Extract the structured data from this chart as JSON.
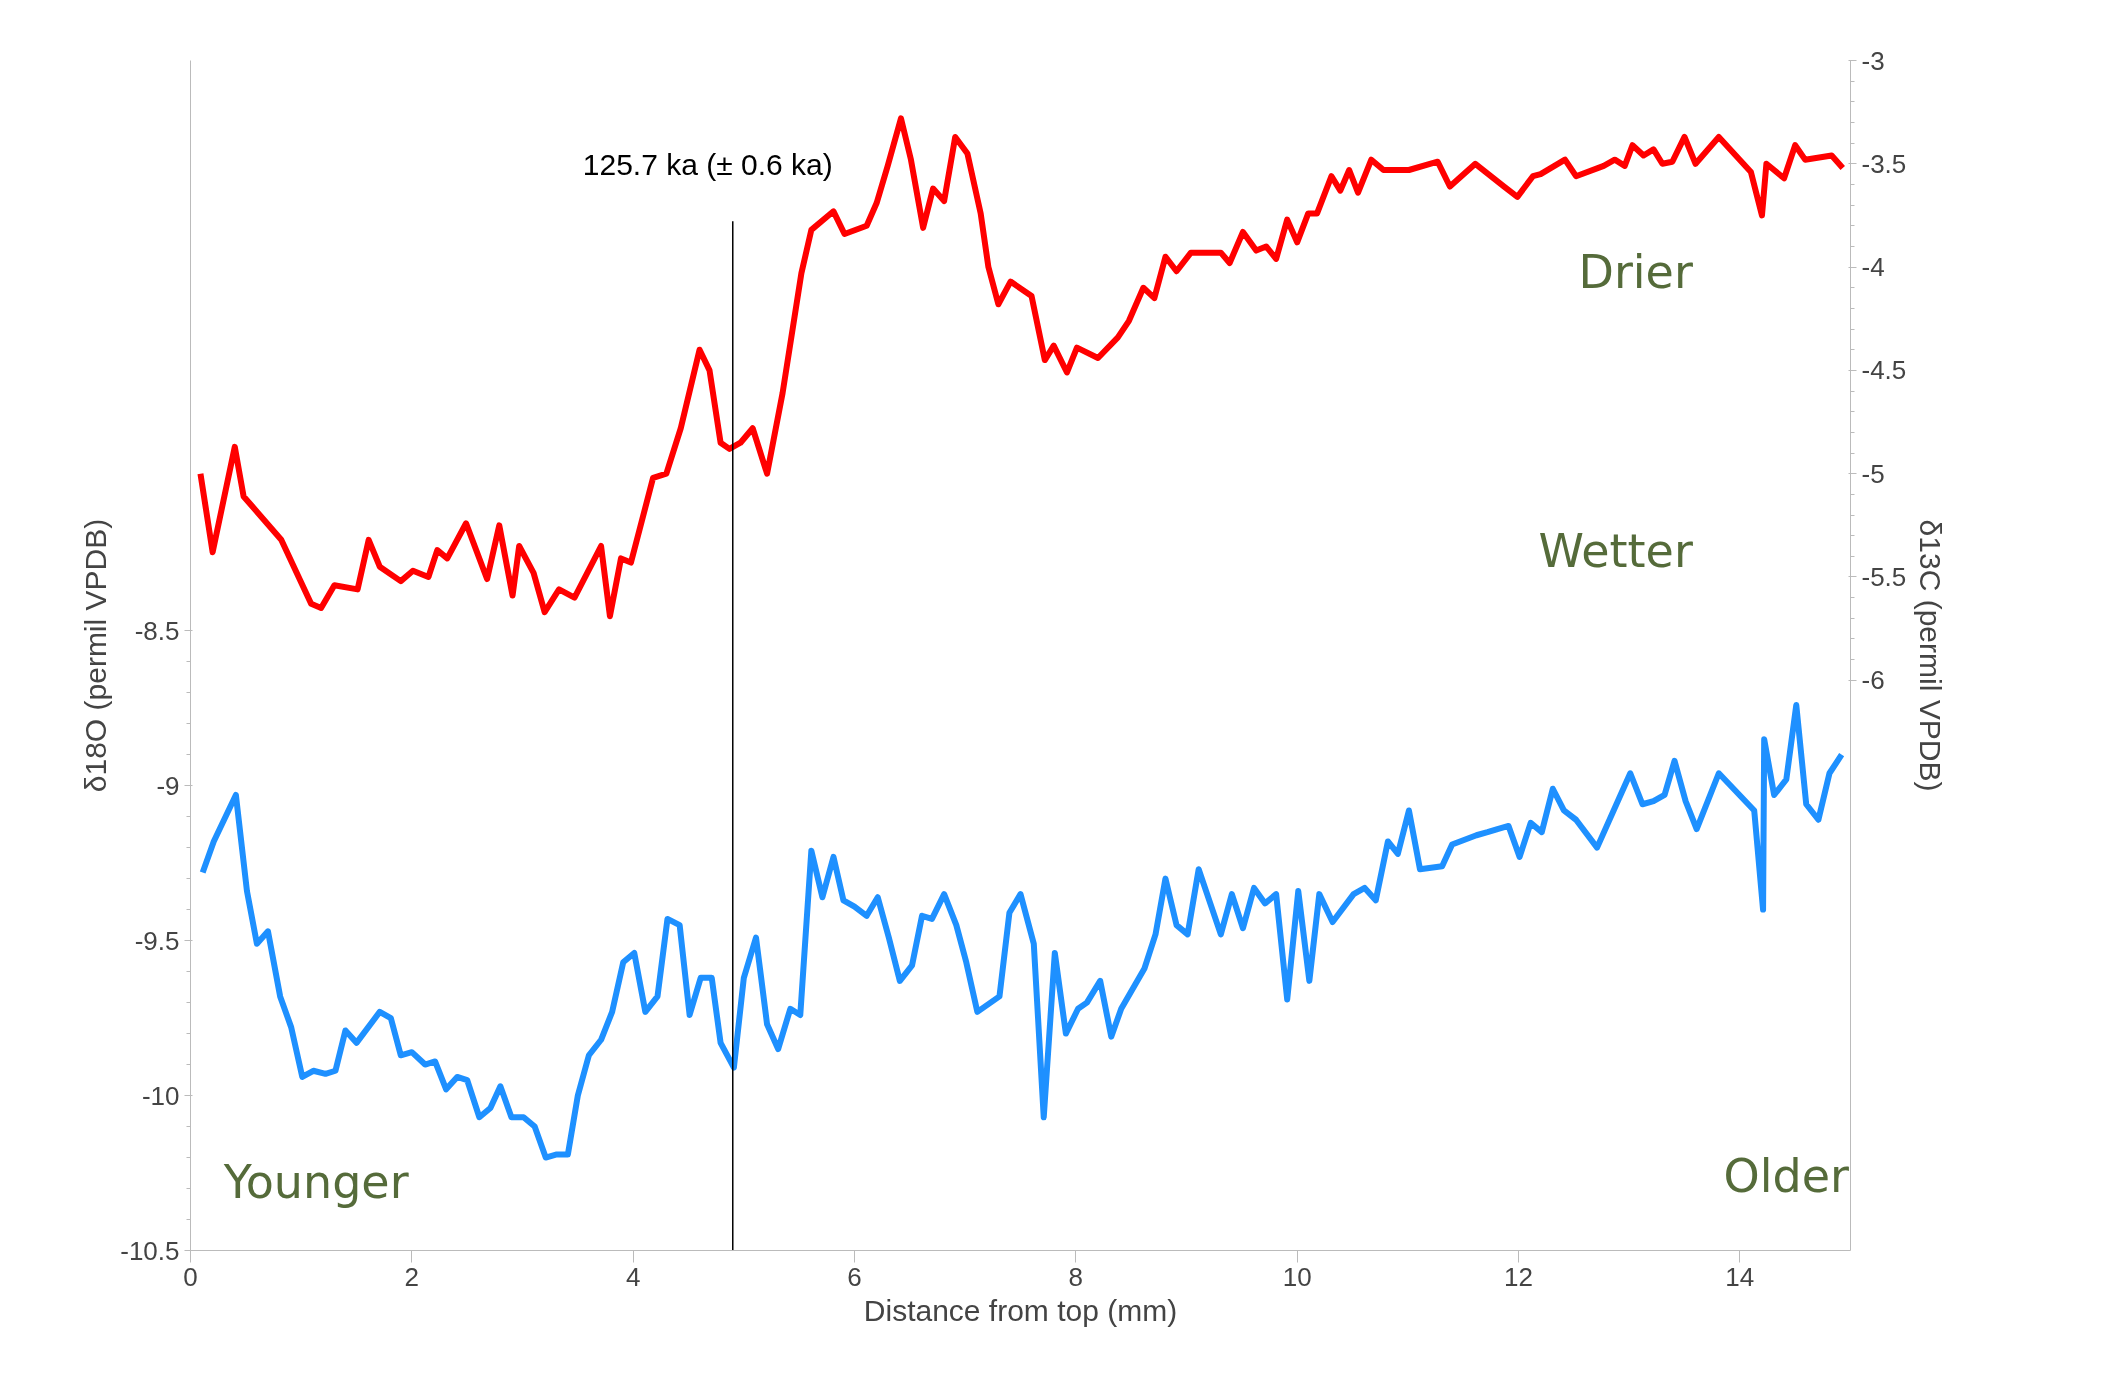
{
  "chart_data": {
    "type": "line",
    "xlabel": "Distance from top (mm)",
    "ylabel": "δ18O (permil VPDB)",
    "y2label": "δ13C (permil VPDB)",
    "xlim": [
      0,
      15
    ],
    "xticks": [
      0,
      2,
      4,
      6,
      8,
      10,
      12,
      14
    ],
    "ylim": [
      -10.5,
      -6.66
    ],
    "yticks": [
      -10.5,
      -10,
      -9.5,
      -9,
      -8.5
    ],
    "y2lim": [
      -8.76,
      -3
    ],
    "y2ticks": [
      -6,
      -5.5,
      -5,
      -4.5,
      -4,
      -3.5,
      -3
    ],
    "grid": false,
    "marker": "none",
    "line_style": "solid",
    "annotations": [
      "Drier",
      "Wetter",
      "Younger",
      "Older"
    ],
    "ref_lines": [
      {
        "axis": "x",
        "value": 4.9,
        "label": "125.7 ka (± 0.6 ka)",
        "color": "#000000"
      }
    ],
    "series": [
      {
        "color": "#ff0000",
        "axis": "y2",
        "x": [
          0.09,
          0.2,
          0.4,
          0.48,
          0.82,
          1.09,
          1.18,
          1.3,
          1.51,
          1.61,
          1.71,
          1.9,
          2.01,
          2.15,
          2.23,
          2.32,
          2.49,
          2.68,
          2.79,
          2.91,
          2.97,
          3.1,
          3.2,
          3.33,
          3.47,
          3.71,
          3.79,
          3.89,
          3.98,
          4.18,
          4.3,
          4.43,
          4.6,
          4.69,
          4.79,
          4.87,
          4.97,
          5.08,
          5.21,
          5.35,
          5.52,
          5.61,
          5.81,
          5.91,
          6.11,
          6.2,
          6.3,
          6.42,
          6.51,
          6.62,
          6.71,
          6.81,
          6.91,
          7.02,
          7.14,
          7.21,
          7.3,
          7.41,
          7.6,
          7.72,
          7.8,
          7.92,
          8.01,
          8.2,
          8.38,
          8.48,
          8.61,
          8.71,
          8.81,
          8.91,
          9.04,
          9.31,
          9.39,
          9.51,
          9.63,
          9.72,
          9.81,
          9.91,
          10.0,
          10.1,
          10.18,
          10.31,
          10.39,
          10.47,
          10.55,
          10.67,
          10.78,
          11.01,
          11.27,
          11.38,
          11.61,
          11.87,
          11.99,
          12.13,
          12.2,
          12.42,
          12.52,
          12.77,
          12.87,
          12.96,
          13.03,
          13.13,
          13.22,
          13.3,
          13.39,
          13.5,
          13.6,
          13.81,
          14.1,
          14.2,
          14.24,
          14.4,
          14.5,
          14.59,
          14.83,
          14.93
        ],
        "values": [
          -5.0,
          -5.38,
          -4.87,
          -5.11,
          -5.32,
          -5.63,
          -5.65,
          -5.54,
          -5.56,
          -5.32,
          -5.45,
          -5.52,
          -5.47,
          -5.5,
          -5.37,
          -5.41,
          -5.24,
          -5.51,
          -5.25,
          -5.59,
          -5.35,
          -5.48,
          -5.67,
          -5.56,
          -5.6,
          -5.35,
          -5.69,
          -5.41,
          -5.43,
          -5.02,
          -5.0,
          -4.78,
          -4.4,
          -4.5,
          -4.85,
          -4.88,
          -4.85,
          -4.78,
          -5.0,
          -4.61,
          -4.03,
          -3.82,
          -3.73,
          -3.84,
          -3.8,
          -3.69,
          -3.51,
          -3.28,
          -3.48,
          -3.81,
          -3.62,
          -3.68,
          -3.37,
          -3.45,
          -3.74,
          -4.0,
          -4.18,
          -4.07,
          -4.14,
          -4.45,
          -4.38,
          -4.51,
          -4.39,
          -4.44,
          -4.34,
          -4.26,
          -4.1,
          -4.15,
          -3.95,
          -4.02,
          -3.93,
          -3.93,
          -3.98,
          -3.83,
          -3.92,
          -3.9,
          -3.96,
          -3.77,
          -3.88,
          -3.74,
          -3.74,
          -3.56,
          -3.63,
          -3.53,
          -3.64,
          -3.48,
          -3.53,
          -3.53,
          -3.49,
          -3.61,
          -3.5,
          -3.61,
          -3.66,
          -3.56,
          -3.55,
          -3.48,
          -3.56,
          -3.51,
          -3.48,
          -3.51,
          -3.41,
          -3.46,
          -3.43,
          -3.5,
          -3.49,
          -3.37,
          -3.5,
          -3.37,
          -3.54,
          -3.75,
          -3.5,
          -3.57,
          -3.41,
          -3.48,
          -3.46,
          -3.52
        ]
      },
      {
        "color": "#1e90ff",
        "x": [
          0.11,
          0.21,
          0.41,
          0.51,
          0.6,
          0.7,
          0.81,
          0.91,
          1.01,
          1.11,
          1.22,
          1.31,
          1.4,
          1.5,
          1.71,
          1.81,
          1.9,
          2.0,
          2.12,
          2.21,
          2.31,
          2.41,
          2.5,
          2.61,
          2.71,
          2.8,
          2.9,
          3.01,
          3.11,
          3.21,
          3.31,
          3.41,
          3.5,
          3.6,
          3.71,
          3.81,
          3.91,
          4.01,
          4.11,
          4.22,
          4.31,
          4.42,
          4.51,
          4.61,
          4.71,
          4.79,
          4.91,
          5.0,
          5.11,
          5.21,
          5.31,
          5.42,
          5.51,
          5.61,
          5.71,
          5.81,
          5.9,
          6.0,
          6.11,
          6.21,
          6.31,
          6.41,
          6.52,
          6.61,
          6.7,
          6.81,
          6.92,
          7.01,
          7.11,
          7.31,
          7.4,
          7.5,
          7.62,
          7.71,
          7.81,
          7.91,
          8.02,
          8.1,
          8.22,
          8.32,
          8.41,
          8.62,
          8.72,
          8.81,
          8.91,
          9.01,
          9.11,
          9.31,
          9.41,
          9.51,
          9.61,
          9.71,
          9.81,
          9.91,
          10.01,
          10.11,
          10.2,
          10.32,
          10.51,
          10.61,
          10.71,
          10.82,
          10.91,
          11.01,
          11.11,
          11.31,
          11.4,
          11.62,
          11.72,
          11.81,
          11.91,
          12.01,
          12.11,
          12.21,
          12.31,
          12.41,
          12.52,
          12.71,
          12.91,
          13.01,
          13.12,
          13.22,
          13.32,
          13.41,
          13.51,
          13.61,
          13.81,
          14.13,
          14.21,
          14.22,
          14.31,
          14.42,
          14.51,
          14.6,
          14.71,
          14.81,
          14.92
        ],
        "values": [
          -9.28,
          -9.18,
          -9.03,
          -9.34,
          -9.51,
          -9.47,
          -9.68,
          -9.78,
          -9.94,
          -9.92,
          -9.93,
          -9.92,
          -9.79,
          -9.83,
          -9.73,
          -9.75,
          -9.87,
          -9.86,
          -9.9,
          -9.89,
          -9.98,
          -9.94,
          -9.95,
          -10.07,
          -10.04,
          -9.97,
          -10.07,
          -10.07,
          -10.1,
          -10.2,
          -10.19,
          -10.19,
          -10.0,
          -9.87,
          -9.82,
          -9.73,
          -9.57,
          -9.54,
          -9.73,
          -9.68,
          -9.43,
          -9.45,
          -9.74,
          -9.62,
          -9.62,
          -9.83,
          -9.91,
          -9.62,
          -9.49,
          -9.77,
          -9.85,
          -9.72,
          -9.74,
          -9.21,
          -9.36,
          -9.23,
          -9.37,
          -9.39,
          -9.42,
          -9.36,
          -9.49,
          -9.63,
          -9.58,
          -9.42,
          -9.43,
          -9.35,
          -9.45,
          -9.57,
          -9.73,
          -9.68,
          -9.41,
          -9.35,
          -9.51,
          -10.07,
          -9.54,
          -9.8,
          -9.72,
          -9.7,
          -9.63,
          -9.81,
          -9.72,
          -9.59,
          -9.48,
          -9.3,
          -9.45,
          -9.48,
          -9.27,
          -9.48,
          -9.35,
          -9.46,
          -9.33,
          -9.38,
          -9.35,
          -9.69,
          -9.34,
          -9.63,
          -9.35,
          -9.44,
          -9.35,
          -9.33,
          -9.37,
          -9.18,
          -9.22,
          -9.08,
          -9.27,
          -9.26,
          -9.19,
          -9.16,
          -9.15,
          -9.14,
          -9.13,
          -9.23,
          -9.12,
          -9.15,
          -9.01,
          -9.08,
          -9.11,
          -9.2,
          -9.04,
          -8.96,
          -9.06,
          -9.05,
          -9.03,
          -8.92,
          -9.05,
          -9.14,
          -8.96,
          -9.08,
          -9.4,
          -8.85,
          -9.03,
          -8.98,
          -8.74,
          -9.06,
          -9.11,
          -8.96,
          -8.9
        ]
      }
    ]
  }
}
